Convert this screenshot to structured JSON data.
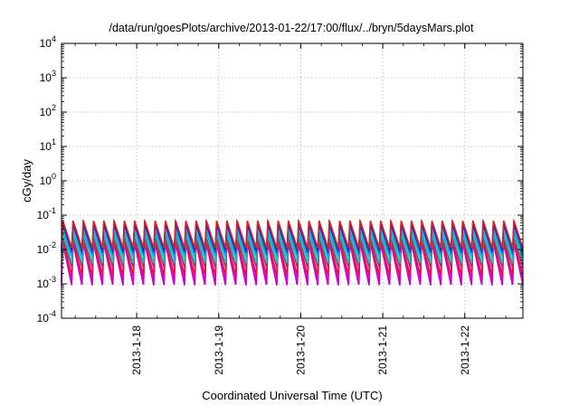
{
  "chart_data": {
    "type": "line",
    "title": "/data/run/goesPlots/archive/2013-01-22/17:00/flux/../bryn/5daysMars.plot",
    "xlabel": "Coordinated Universal Time (UTC)",
    "ylabel": "cGy/day",
    "x_scale": "time",
    "y_scale": "log",
    "xlim": [
      "2013-01-17 02:00",
      "2013-01-22 17:00"
    ],
    "ylim": [
      0.0001,
      10000
    ],
    "x_ticks": [
      "2013-1-18",
      "2013-1-19",
      "2013-1-20",
      "2013-1-21",
      "2013-1-22"
    ],
    "y_ticks": [
      {
        "value": 0.0001,
        "base": "10",
        "exp": "-4"
      },
      {
        "value": 0.001,
        "base": "10",
        "exp": "-3"
      },
      {
        "value": 0.01,
        "base": "10",
        "exp": "-2"
      },
      {
        "value": 0.1,
        "base": "10",
        "exp": "-1"
      },
      {
        "value": 1,
        "base": "10",
        "exp": "0"
      },
      {
        "value": 10,
        "base": "10",
        "exp": "1"
      },
      {
        "value": 100,
        "base": "10",
        "exp": "2"
      },
      {
        "value": 1000,
        "base": "10",
        "exp": "3"
      },
      {
        "value": 10000,
        "base": "10",
        "exp": "4"
      }
    ],
    "grid": true,
    "legend": "none",
    "cycles_per_day": 8,
    "series": [
      {
        "color": "#ff00ff",
        "peak": 0.02,
        "trough": 0.0012
      },
      {
        "color": "#cc00cc",
        "peak": 0.016,
        "trough": 0.0009
      },
      {
        "color": "#ee1133",
        "peak": 0.018,
        "trough": 0.0018
      },
      {
        "color": "#b03060",
        "peak": 0.022,
        "trough": 0.003
      },
      {
        "color": "#00cccc",
        "peak": 0.03,
        "trough": 0.004
      },
      {
        "color": "#22aacc",
        "peak": 0.035,
        "trough": 0.006
      },
      {
        "color": "#0055dd",
        "peak": 0.05,
        "trough": 0.008
      },
      {
        "color": "#2222bb",
        "peak": 0.06,
        "trough": 0.01
      },
      {
        "color": "#dd2222",
        "peak": 0.07,
        "trough": 0.011
      }
    ]
  }
}
